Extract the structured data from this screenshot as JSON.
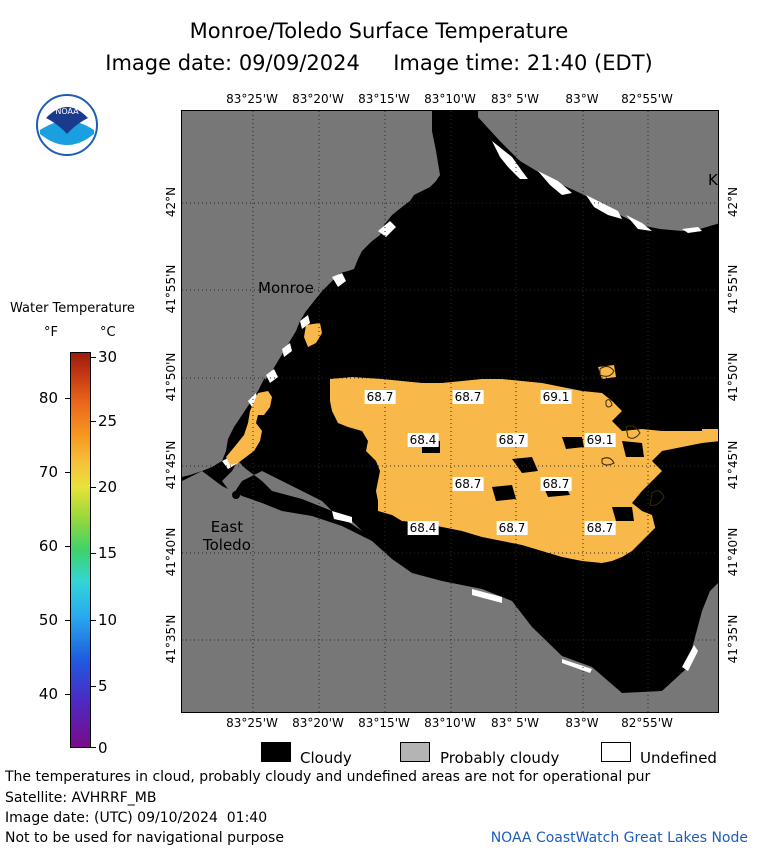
{
  "title": "Monroe/Toledo Surface Temperature",
  "image_date_line": "Image date: 09/09/2024     Image time: 21:40 (EDT)",
  "map": {
    "lon_labels": [
      "83°25'W",
      "83°20'W",
      "83°15'W",
      "83°10'W",
      "83° 5'W",
      "83°W",
      "82°55'W"
    ],
    "lat_labels": [
      "42°N",
      "41°55'N",
      "41°50'N",
      "41°45'N",
      "41°40'N",
      "41°35'N"
    ],
    "cities": {
      "monroe": "Monroe",
      "east_toledo": "East\nToledo",
      "corner_letter": "K"
    },
    "temperatures": [
      "68.7",
      "68.7",
      "69.1",
      "68.4",
      "68.7",
      "69.1",
      "68.7",
      "68.7",
      "68.4",
      "68.7",
      "68.7"
    ]
  },
  "legend": {
    "title": "Water Temperature",
    "unit_f": "°F",
    "unit_c": "°C",
    "ticks_f": [
      "80",
      "70",
      "60",
      "50",
      "40"
    ],
    "ticks_c": [
      "30",
      "25",
      "20",
      "15",
      "10",
      "5",
      "0"
    ],
    "colors": {
      "water_temp_68": "#f9b84a",
      "cloudy": "#000000",
      "probably_cloudy": "#b4b4b4",
      "undefined": "#ffffff",
      "land": "#777777"
    }
  },
  "key": {
    "cloudy": "Cloudy",
    "probably_cloudy": "Probably cloudy",
    "undefined": "Undefined"
  },
  "footer": {
    "note": "The temperatures in cloud, probably cloudy and undefined areas are not for operational pur",
    "satellite": "Satellite: AVHRRF_MB",
    "utc_date": "Image date: (UTC) 09/10/2024  01:40",
    "nav_note": "Not to be used for navigational purpose",
    "credit": "NOAA CoastWatch Great Lakes Node"
  },
  "logo": {
    "text": "NOAA"
  }
}
